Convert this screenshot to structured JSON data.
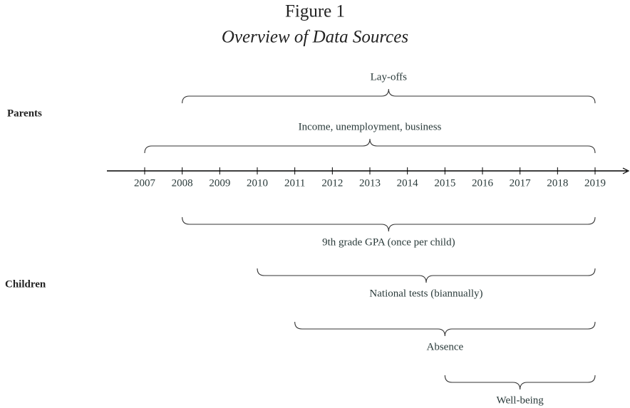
{
  "figure": {
    "title": "Figure 1",
    "subtitle": "Overview of Data Sources"
  },
  "timeline": {
    "years": [
      2007,
      2008,
      2009,
      2010,
      2011,
      2012,
      2013,
      2014,
      2015,
      2016,
      2017,
      2018,
      2019
    ]
  },
  "groups": [
    {
      "label": "Parents",
      "spans": [
        {
          "label": "Lay-offs",
          "start": 2008,
          "end": 2019
        },
        {
          "label": "Income, unemployment, business",
          "start": 2007,
          "end": 2019
        }
      ]
    },
    {
      "label": "Children",
      "spans": [
        {
          "label": "9th grade GPA (once per child)",
          "start": 2008,
          "end": 2019
        },
        {
          "label": "National tests (biannually)",
          "start": 2010,
          "end": 2019
        },
        {
          "label": "Absence",
          "start": 2011,
          "end": 2019
        },
        {
          "label": "Well-being",
          "start": 2015,
          "end": 2019
        }
      ]
    }
  ]
}
